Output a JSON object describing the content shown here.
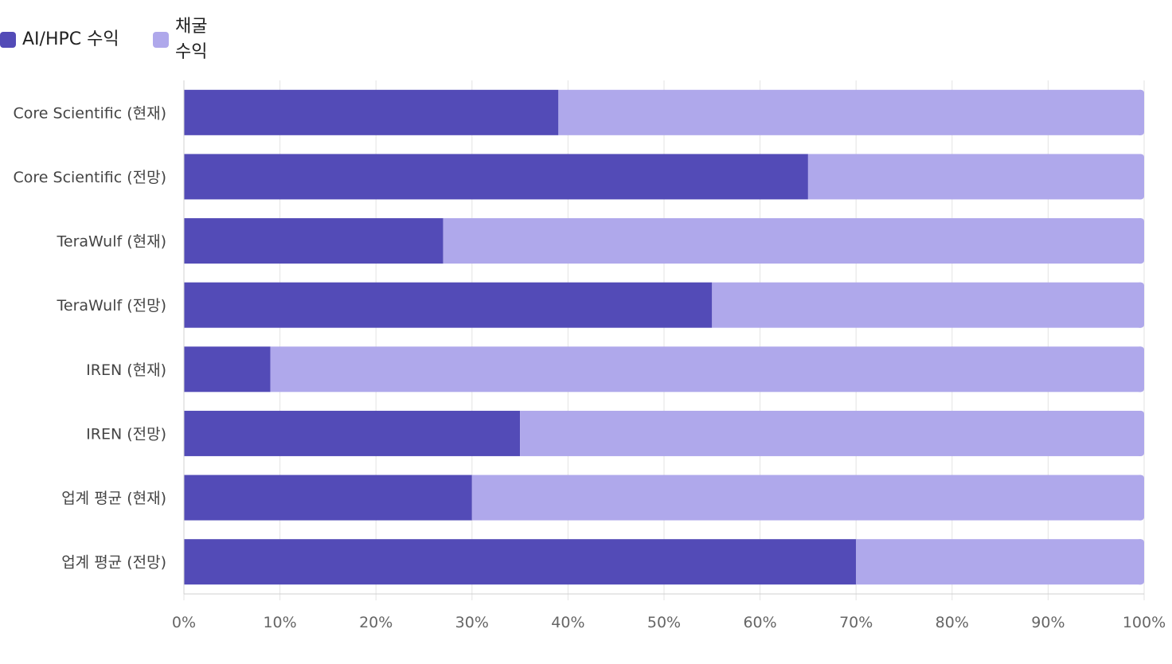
{
  "chart_data": {
    "type": "bar",
    "orientation": "horizontal",
    "stacked": true,
    "categories": [
      "Core Scientific (현재)",
      "Core Scientific (전망)",
      "TeraWulf (현재)",
      "TeraWulf (전망)",
      "IREN (현재)",
      "IREN (전망)",
      "업계 평균 (현재)",
      "업계 평균 (전망)"
    ],
    "series": [
      {
        "name": "AI/HPC 수익",
        "color": "#534bb7",
        "values": [
          39,
          65,
          27,
          55,
          9,
          35,
          30,
          70
        ]
      },
      {
        "name": "채굴 수익",
        "color": "#afa8eb",
        "values": [
          61,
          35,
          73,
          45,
          91,
          65,
          70,
          30
        ]
      }
    ],
    "x_ticks": [
      "0%",
      "10%",
      "20%",
      "30%",
      "40%",
      "50%",
      "60%",
      "70%",
      "80%",
      "90%",
      "100%"
    ],
    "xlim": [
      0,
      100
    ],
    "grid": true,
    "legend_position": "top-left",
    "title": "",
    "xlabel": "",
    "ylabel": ""
  }
}
